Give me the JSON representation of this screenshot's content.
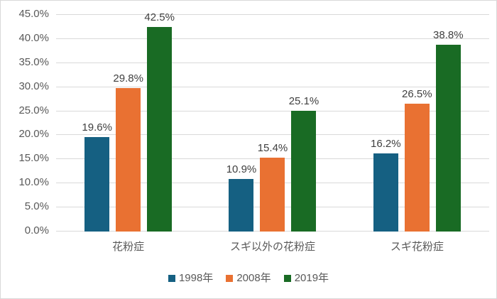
{
  "chart_data": {
    "type": "bar",
    "title": "",
    "xlabel": "",
    "ylabel": "",
    "ylim": [
      0,
      45
    ],
    "ytick_step": 5,
    "ytick_values": [
      0,
      5,
      10,
      15,
      20,
      25,
      30,
      35,
      40,
      45
    ],
    "ytick_labels": [
      "0.0%",
      "5.0%",
      "10.0%",
      "15.0%",
      "20.0%",
      "25.0%",
      "30.0%",
      "35.0%",
      "40.0%",
      "45.0%"
    ],
    "categories": [
      "花粉症",
      "スギ以外の花粉症",
      "スギ花粉症"
    ],
    "series": [
      {
        "name": "1998年",
        "color": "#156082",
        "values": [
          19.6,
          10.9,
          16.2
        ],
        "labels": [
          "19.6%",
          "10.9%",
          "16.2%"
        ]
      },
      {
        "name": "2008年",
        "color": "#E97132",
        "values": [
          29.8,
          15.4,
          26.5
        ],
        "labels": [
          "29.8%",
          "15.4%",
          "26.5%"
        ]
      },
      {
        "name": "2019年",
        "color": "#196B24",
        "values": [
          42.5,
          25.1,
          38.8
        ],
        "labels": [
          "42.5%",
          "25.1%",
          "38.8%"
        ]
      }
    ],
    "grid": true,
    "legend_position": "bottom",
    "style": {
      "background_color": "#ffffff",
      "border_color": "#d9d9d9",
      "gridline_color": "#d9d9d9",
      "axis_text_color": "#595959",
      "data_label_color": "#404040"
    }
  }
}
